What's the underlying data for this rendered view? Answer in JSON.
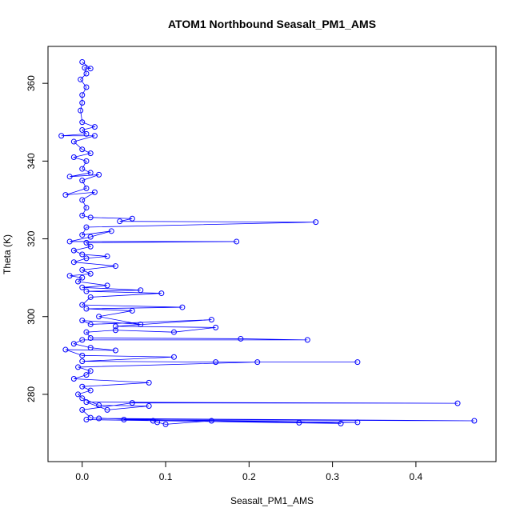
{
  "chart_data": {
    "type": "line",
    "title": "ATOM1 Northbound Seasalt_PM1_AMS",
    "x_label": "Seasalt_PM1_AMS",
    "y_label": "Theta (K)",
    "color": "#0000ff",
    "markers": "open-circle",
    "xlim": [
      -0.041,
      0.496
    ],
    "ylim": [
      262.7,
      369.5
    ],
    "xticks": [
      {
        "value": 0,
        "label": "0.0"
      },
      0.1,
      0.2,
      0.3,
      0.4
    ],
    "yticks": [
      280,
      300,
      320,
      340,
      360
    ],
    "x": [
      0.005,
      0.31,
      0.02,
      0.47,
      0.05,
      0.33,
      0.26,
      0.155,
      0.1,
      0.09,
      0.085,
      0.01,
      0,
      0.06,
      0.45,
      0.005,
      0.03,
      0.08,
      0.02,
      0,
      -0.005,
      0.01,
      0,
      0.08,
      -0.01,
      0.005,
      0.01,
      -0.005,
      0.21,
      0.33,
      0.16,
      0,
      0.11,
      0,
      -0.02,
      0.04,
      0.01,
      -0.01,
      0,
      0.27,
      0.19,
      0.01,
      0.005,
      0.04,
      0.11,
      0.16,
      0.04,
      0.155,
      0.01,
      0,
      0.07,
      0.02,
      0.06,
      0.005,
      0.12,
      0,
      0.01,
      0.095,
      0.005,
      0.07,
      0,
      0.03,
      -0.005,
      0,
      -0.015,
      0.01,
      0,
      0.04,
      -0.01,
      0.005,
      0.03,
      0,
      -0.01,
      0.01,
      0.005,
      0.185,
      -0.015,
      0.01,
      0.035,
      0,
      0.005,
      0.28,
      0.045,
      0.06,
      0.01,
      0,
      0.005,
      0,
      0.015,
      -0.02,
      0.005,
      0,
      0.02,
      -0.015,
      0.01,
      0,
      0.005,
      -0.01,
      0.01,
      0,
      -0.01,
      0.015,
      -0.025,
      0.005,
      0,
      0.015,
      0,
      -0.002,
      0,
      0,
      0.005,
      -0.002,
      0.005,
      0.003,
      0.01,
      0
    ],
    "values": [
      273.5,
      272.5,
      273.8,
      273.2,
      273.5,
      272.8,
      272.7,
      273.2,
      272.3,
      272.8,
      273.2,
      274,
      276,
      277.8,
      277.7,
      278,
      276,
      277,
      277.2,
      279,
      280,
      281,
      282,
      283,
      284,
      285,
      286,
      287,
      288.3,
      288.3,
      288.3,
      288.5,
      289.6,
      290,
      291.5,
      291.3,
      292,
      293,
      294,
      294,
      294.3,
      294.5,
      296,
      296.5,
      296,
      297.2,
      297.5,
      299.2,
      298,
      299,
      298,
      300,
      301.5,
      302,
      302.4,
      303,
      305,
      306,
      306.5,
      306.8,
      307.5,
      308,
      309,
      310,
      310.5,
      311,
      312,
      313,
      314,
      315,
      315.5,
      316,
      317,
      318,
      319,
      319.3,
      319.3,
      320.5,
      322,
      321,
      323,
      324.3,
      324.5,
      325.2,
      325.5,
      326,
      328,
      330,
      332,
      331.3,
      333,
      335,
      336.5,
      336,
      337,
      338,
      340,
      341,
      342,
      343,
      345,
      346.5,
      346.5,
      347,
      348,
      348.8,
      350,
      353,
      355,
      357,
      359,
      361,
      362.5,
      364,
      363.8,
      365.5
    ]
  }
}
